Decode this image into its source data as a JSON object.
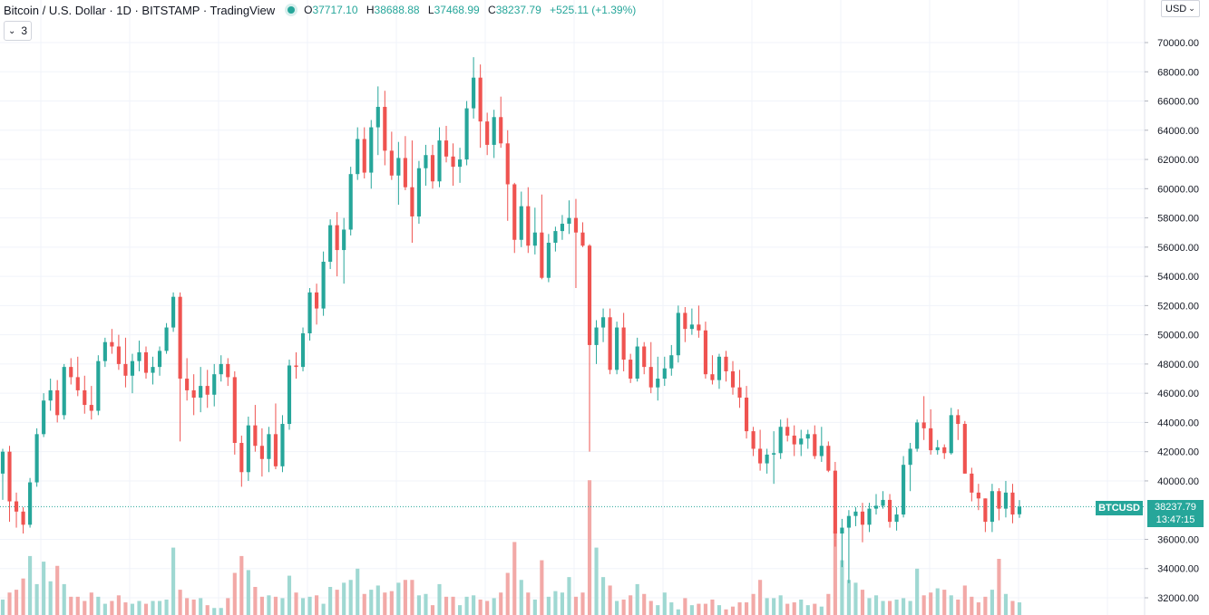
{
  "header": {
    "title": "Bitcoin / U.S. Dollar · 1D · BITSTAMP · TradingView",
    "ohlc": {
      "open_key": "O",
      "open": "37717.10",
      "high_key": "H",
      "high": "38688.88",
      "low_key": "L",
      "low": "37468.99",
      "close_key": "C",
      "close": "38237.79",
      "change": "+525.11 (+1.39%)"
    },
    "collapse_count": "3"
  },
  "currency_button": {
    "label": "USD"
  },
  "last_price": {
    "symbol": "BTCUSD",
    "price": "38237.79",
    "countdown": "13:47:15"
  },
  "colors": {
    "up": "#26a69a",
    "down": "#ef5350",
    "up_volume": "#9fd8d2",
    "down_volume": "#f2a9a7",
    "grid": "#f0f3fa"
  },
  "chart_data": {
    "type": "candlestick",
    "y_axis_ticks": [
      "70000.00",
      "68000.00",
      "66000.00",
      "64000.00",
      "62000.00",
      "60000.00",
      "58000.00",
      "56000.00",
      "54000.00",
      "52000.00",
      "50000.00",
      "48000.00",
      "46000.00",
      "44000.00",
      "42000.00",
      "40000.00",
      "38237.79",
      "36000.00",
      "34000.00",
      "32000.00"
    ],
    "ylim": [
      31000,
      71500
    ],
    "candles": [
      [
        40500,
        42200,
        38700,
        42000
      ],
      [
        42000,
        42400,
        37200,
        38600
      ],
      [
        38600,
        39200,
        36800,
        37900
      ],
      [
        37900,
        38200,
        36400,
        37000
      ],
      [
        37000,
        40200,
        36800,
        39900
      ],
      [
        39900,
        43600,
        39600,
        43200
      ],
      [
        43200,
        46000,
        43000,
        45500
      ],
      [
        45500,
        47000,
        44800,
        46200
      ],
      [
        46200,
        46900,
        44000,
        44500
      ],
      [
        44500,
        48000,
        44200,
        47800
      ],
      [
        47800,
        48400,
        46600,
        47100
      ],
      [
        47100,
        48500,
        45800,
        46200
      ],
      [
        46200,
        47200,
        44600,
        45200
      ],
      [
        45200,
        46500,
        44200,
        44800
      ],
      [
        44800,
        48600,
        44500,
        48200
      ],
      [
        48200,
        49800,
        47800,
        49500
      ],
      [
        49500,
        50400,
        48700,
        49200
      ],
      [
        49200,
        50000,
        47600,
        48000
      ],
      [
        48000,
        49800,
        46400,
        47200
      ],
      [
        47200,
        48700,
        46000,
        48200
      ],
      [
        48200,
        49600,
        47500,
        48800
      ],
      [
        48800,
        49200,
        47000,
        47400
      ],
      [
        47400,
        48500,
        46600,
        47800
      ],
      [
        47800,
        49200,
        47200,
        48900
      ],
      [
        48900,
        50800,
        48700,
        50500
      ],
      [
        50500,
        52900,
        50200,
        52600
      ],
      [
        52600,
        52900,
        42700,
        47000
      ],
      [
        47000,
        48400,
        45500,
        46200
      ],
      [
        46200,
        47300,
        44500,
        45700
      ],
      [
        45700,
        47800,
        44700,
        46500
      ],
      [
        46500,
        47600,
        45000,
        45900
      ],
      [
        45900,
        48000,
        45100,
        47300
      ],
      [
        47300,
        48600,
        46800,
        48000
      ],
      [
        48000,
        48400,
        46500,
        47100
      ],
      [
        47100,
        47500,
        41800,
        42600
      ],
      [
        42600,
        43100,
        39600,
        40600
      ],
      [
        40600,
        44400,
        40000,
        43800
      ],
      [
        43800,
        45200,
        42000,
        42400
      ],
      [
        42400,
        43600,
        40300,
        41500
      ],
      [
        41500,
        43700,
        40600,
        43200
      ],
      [
        43200,
        45300,
        40800,
        41000
      ],
      [
        41000,
        44500,
        40600,
        43900
      ],
      [
        43900,
        48300,
        43500,
        47900
      ],
      [
        47900,
        48800,
        47000,
        47800
      ],
      [
        47800,
        50500,
        47500,
        50100
      ],
      [
        50100,
        53200,
        49600,
        52900
      ],
      [
        52900,
        53500,
        50700,
        51800
      ],
      [
        51800,
        55700,
        51300,
        55000
      ],
      [
        55000,
        57900,
        54500,
        57500
      ],
      [
        57500,
        58400,
        54000,
        55800
      ],
      [
        55800,
        58000,
        53500,
        57200
      ],
      [
        57200,
        61500,
        56800,
        61000
      ],
      [
        61000,
        64200,
        60600,
        63400
      ],
      [
        63400,
        64200,
        60700,
        61100
      ],
      [
        61100,
        64700,
        60000,
        64200
      ],
      [
        64200,
        67000,
        62300,
        65600
      ],
      [
        65600,
        66700,
        61600,
        62600
      ],
      [
        62600,
        63900,
        60600,
        60900
      ],
      [
        60900,
        63200,
        58900,
        62100
      ],
      [
        62100,
        63600,
        59900,
        60100
      ],
      [
        60100,
        63300,
        56300,
        58100
      ],
      [
        58100,
        61900,
        57600,
        61400
      ],
      [
        61400,
        63000,
        60200,
        62300
      ],
      [
        62300,
        63000,
        60000,
        60500
      ],
      [
        60500,
        64200,
        60100,
        63300
      ],
      [
        63300,
        64300,
        61800,
        62200
      ],
      [
        62200,
        63100,
        60200,
        61500
      ],
      [
        61500,
        62800,
        60400,
        62000
      ],
      [
        62000,
        66000,
        61600,
        65500
      ],
      [
        65500,
        69000,
        64800,
        67600
      ],
      [
        67600,
        68500,
        62800,
        64600
      ],
      [
        64600,
        65200,
        62300,
        63000
      ],
      [
        63000,
        65400,
        62100,
        64900
      ],
      [
        64900,
        66300,
        62800,
        63100
      ],
      [
        63100,
        64000,
        57800,
        60300
      ],
      [
        60300,
        60400,
        55600,
        56500
      ],
      [
        56500,
        59800,
        56000,
        58800
      ],
      [
        58800,
        60100,
        55600,
        56100
      ],
      [
        56100,
        58700,
        55500,
        57000
      ],
      [
        57000,
        59600,
        53800,
        53900
      ],
      [
        53900,
        56900,
        53600,
        56300
      ],
      [
        56300,
        57400,
        55700,
        57100
      ],
      [
        57100,
        58200,
        56500,
        57600
      ],
      [
        57600,
        59200,
        56900,
        58000
      ],
      [
        58000,
        59300,
        53200,
        57000
      ],
      [
        57000,
        57700,
        56000,
        56100
      ],
      [
        56100,
        56200,
        42000,
        49300
      ],
      [
        49300,
        51000,
        48000,
        50500
      ],
      [
        50500,
        51800,
        49500,
        51200
      ],
      [
        51200,
        51800,
        47300,
        47600
      ],
      [
        47600,
        50900,
        47300,
        50500
      ],
      [
        50500,
        51500,
        47500,
        48300
      ],
      [
        48300,
        48700,
        46700,
        47000
      ],
      [
        47000,
        49800,
        46800,
        49200
      ],
      [
        49200,
        49500,
        47300,
        47800
      ],
      [
        47800,
        49500,
        46000,
        46400
      ],
      [
        46400,
        48500,
        45500,
        47000
      ],
      [
        47000,
        48500,
        46500,
        47700
      ],
      [
        47700,
        49300,
        47200,
        48600
      ],
      [
        48600,
        52000,
        48100,
        51500
      ],
      [
        51500,
        51900,
        49500,
        50400
      ],
      [
        50400,
        51800,
        50000,
        50700
      ],
      [
        50700,
        52000,
        49800,
        50300
      ],
      [
        50300,
        50900,
        47000,
        47300
      ],
      [
        47300,
        48600,
        46600,
        46900
      ],
      [
        46900,
        48700,
        46300,
        48500
      ],
      [
        48500,
        48900,
        46800,
        47500
      ],
      [
        47500,
        48200,
        45900,
        46400
      ],
      [
        46400,
        47600,
        45000,
        45700
      ],
      [
        45700,
        46500,
        42900,
        43400
      ],
      [
        43400,
        43700,
        41700,
        42200
      ],
      [
        42200,
        43500,
        40700,
        41200
      ],
      [
        41200,
        42200,
        40500,
        41800
      ],
      [
        41800,
        43400,
        39800,
        41900
      ],
      [
        41900,
        44200,
        41500,
        43700
      ],
      [
        43700,
        44300,
        42700,
        43100
      ],
      [
        43100,
        43800,
        41700,
        42500
      ],
      [
        42500,
        43500,
        41700,
        42900
      ],
      [
        42900,
        43500,
        42200,
        43200
      ],
      [
        43200,
        43800,
        41500,
        41700
      ],
      [
        41700,
        43700,
        41300,
        42400
      ],
      [
        42400,
        42700,
        40600,
        40700
      ],
      [
        40700,
        41300,
        35500,
        36400
      ],
      [
        36400,
        37400,
        34100,
        36800
      ],
      [
        36800,
        38000,
        33000,
        37600
      ],
      [
        37600,
        38200,
        36900,
        37900
      ],
      [
        37900,
        38500,
        35800,
        37000
      ],
      [
        37000,
        38500,
        36500,
        38100
      ],
      [
        38100,
        39100,
        37700,
        38300
      ],
      [
        38300,
        39300,
        38100,
        38700
      ],
      [
        38700,
        39100,
        36800,
        37200
      ],
      [
        37200,
        38200,
        36600,
        37700
      ],
      [
        37700,
        41700,
        37500,
        41100
      ],
      [
        41100,
        42600,
        39300,
        42200
      ],
      [
        42200,
        44200,
        42000,
        44000
      ],
      [
        44000,
        45800,
        42800,
        43600
      ],
      [
        43600,
        44900,
        41800,
        42100
      ],
      [
        42100,
        42800,
        41800,
        42300
      ],
      [
        42300,
        42500,
        41500,
        41900
      ],
      [
        41900,
        45000,
        41800,
        44500
      ],
      [
        44500,
        44900,
        42800,
        43900
      ],
      [
        43900,
        44100,
        40500,
        40500
      ],
      [
        40500,
        40900,
        38600,
        39200
      ],
      [
        39200,
        39800,
        38000,
        38800
      ],
      [
        38800,
        38800,
        36500,
        37200
      ],
      [
        37200,
        39800,
        36500,
        39300
      ],
      [
        39300,
        39500,
        37300,
        38100
      ],
      [
        38100,
        40000,
        37500,
        39200
      ],
      [
        39200,
        39800,
        37100,
        37700
      ],
      [
        37717.1,
        38688.88,
        37468.99,
        38237.79
      ]
    ],
    "volume_relative": [
      0.11,
      0.16,
      0.18,
      0.26,
      0.42,
      0.22,
      0.38,
      0.24,
      0.35,
      0.22,
      0.13,
      0.13,
      0.1,
      0.16,
      0.13,
      0.08,
      0.1,
      0.14,
      0.09,
      0.08,
      0.1,
      0.08,
      0.1,
      0.1,
      0.11,
      0.48,
      0.18,
      0.12,
      0.11,
      0.12,
      0.07,
      0.05,
      0.05,
      0.12,
      0.3,
      0.42,
      0.32,
      0.2,
      0.13,
      0.14,
      0.13,
      0.12,
      0.28,
      0.16,
      0.12,
      0.13,
      0.14,
      0.08,
      0.2,
      0.18,
      0.23,
      0.25,
      0.33,
      0.15,
      0.18,
      0.21,
      0.16,
      0.17,
      0.23,
      0.25,
      0.25,
      0.14,
      0.15,
      0.07,
      0.22,
      0.13,
      0.13,
      0.07,
      0.13,
      0.14,
      0.11,
      0.1,
      0.12,
      0.16,
      0.3,
      0.52,
      0.25,
      0.16,
      0.11,
      0.39,
      0.13,
      0.17,
      0.16,
      0.27,
      0.13,
      0.16,
      0.96,
      0.48,
      0.27,
      0.21,
      0.1,
      0.11,
      0.14,
      0.22,
      0.15,
      0.1,
      0.07,
      0.16,
      0.09,
      0.04,
      0.12,
      0.07,
      0.08,
      0.08,
      0.11,
      0.07,
      0.04,
      0.06,
      0.09,
      0.09,
      0.15,
      0.25,
      0.12,
      0.12,
      0.14,
      0.08,
      0.09,
      0.11,
      0.07,
      0.08,
      0.06,
      0.15,
      0.6,
      0.39,
      0.25,
      0.23,
      0.18,
      0.12,
      0.14,
      0.1,
      0.1,
      0.11,
      0.12,
      0.1,
      0.33,
      0.14,
      0.16,
      0.19,
      0.18,
      0.14,
      0.11,
      0.21,
      0.13,
      0.09,
      0.13,
      0.18,
      0.4,
      0.15,
      0.1,
      0.09,
      0.07
    ]
  }
}
